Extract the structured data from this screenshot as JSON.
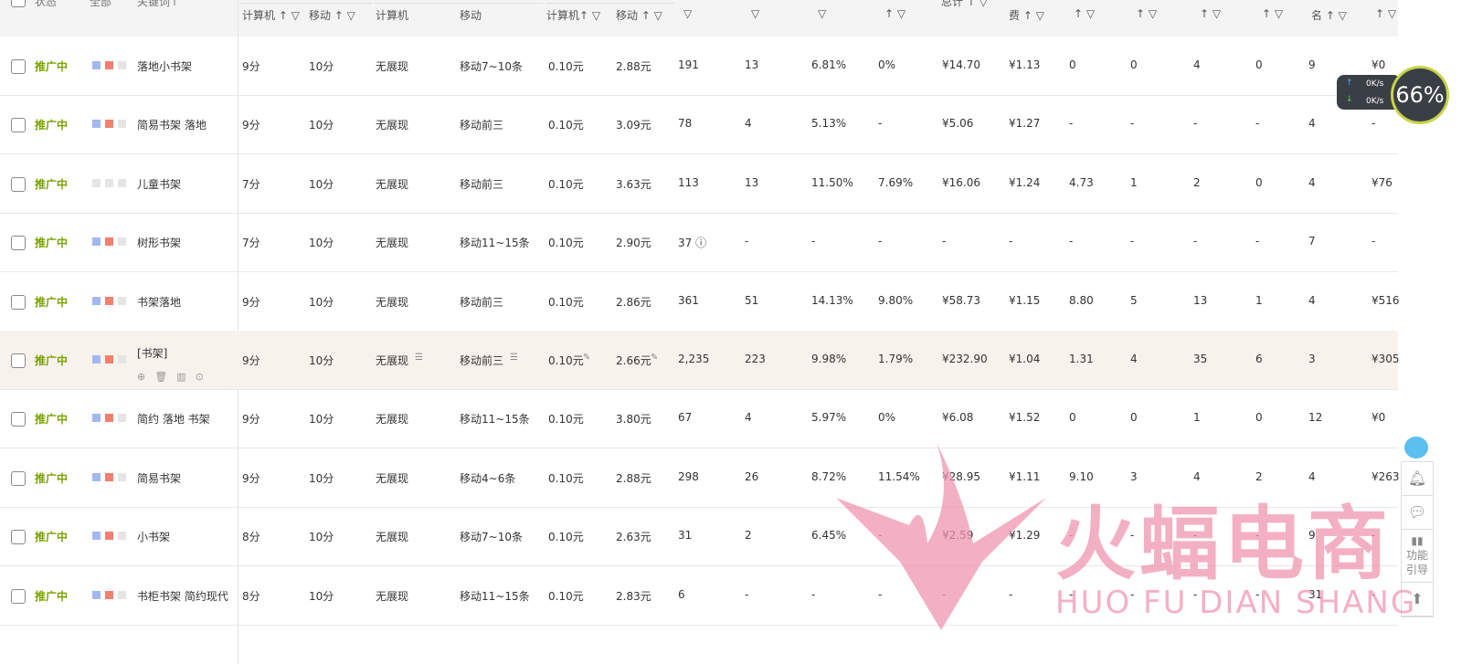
{
  "header": {
    "top": [
      "状态",
      "全部",
      "关键词↑"
    ],
    "cols": [
      "计算机 ↑ ▽",
      "移动 ↑ ▽",
      "计算机",
      "移动",
      "计算机↑ ▽",
      "移动 ↑ ▽",
      "▽",
      "▽",
      "▽",
      "↑ ▽",
      "总计 ↑ ▽",
      "费 ↑ ▽",
      "↑ ▽",
      "↑ ▽",
      "↑ ▽",
      "↑ ▽",
      "名 ↑ ▽",
      "↑ ▽"
    ]
  },
  "colors": {
    "blue": "#a4b8f0",
    "red": "#f08070",
    "gray": "#e5e5e5",
    "status": "#7aa300"
  },
  "rows": [
    {
      "status": "推广中",
      "sq": [
        "blue",
        "red",
        "gray"
      ],
      "kw": "落地小书架",
      "v": [
        "9分",
        "10分",
        "无展现",
        "移动7~10条",
        "0.10元",
        "2.88元",
        "191",
        "13",
        "6.81%",
        "0%",
        "¥14.70",
        "¥1.13",
        "0",
        "0",
        "4",
        "0",
        "9",
        "¥0"
      ]
    },
    {
      "status": "推广中",
      "sq": [
        "blue",
        "red",
        "gray"
      ],
      "kw": "简易书架 落地",
      "v": [
        "9分",
        "10分",
        "无展现",
        "移动前三",
        "0.10元",
        "3.09元",
        "78",
        "4",
        "5.13%",
        "-",
        "¥5.06",
        "¥1.27",
        "-",
        "-",
        "-",
        "-",
        "4",
        "-"
      ]
    },
    {
      "status": "推广中",
      "sq": [
        "gray",
        "gray",
        "gray"
      ],
      "kw": "儿童书架",
      "v": [
        "7分",
        "10分",
        "无展现",
        "移动前三",
        "0.10元",
        "3.63元",
        "113",
        "13",
        "11.50%",
        "7.69%",
        "¥16.06",
        "¥1.24",
        "4.73",
        "1",
        "2",
        "0",
        "4",
        "¥76"
      ]
    },
    {
      "status": "推广中",
      "sq": [
        "blue",
        "red",
        "gray"
      ],
      "kw": "树形书架",
      "v": [
        "7分",
        "10分",
        "无展现",
        "移动11~15条",
        "0.10元",
        "2.90元",
        "37 ⓘ",
        "-",
        "-",
        "-",
        "-",
        "-",
        "-",
        "-",
        "-",
        "-",
        "7",
        "-"
      ]
    },
    {
      "status": "推广中",
      "sq": [
        "blue",
        "red",
        "gray"
      ],
      "kw": "书架落地",
      "v": [
        "9分",
        "10分",
        "无展现",
        "移动前三",
        "0.10元",
        "2.86元",
        "361",
        "51",
        "14.13%",
        "9.80%",
        "¥58.73",
        "¥1.15",
        "8.80",
        "5",
        "13",
        "1",
        "4",
        "¥516"
      ]
    },
    {
      "status": "推广中",
      "sq": [
        "blue",
        "red",
        "gray"
      ],
      "kw": "[书架]",
      "v": [
        "9分",
        "10分",
        "无展现",
        "移动前三",
        "0.10元",
        "2.66元",
        "2,235",
        "223",
        "9.98%",
        "1.79%",
        "¥232.90",
        "¥1.04",
        "1.31",
        "4",
        "35",
        "6",
        "3",
        "¥305"
      ]
    },
    {
      "status": "推广中",
      "sq": [
        "blue",
        "red",
        "gray"
      ],
      "kw": "简约 落地 书架",
      "v": [
        "9分",
        "10分",
        "无展现",
        "移动11~15条",
        "0.10元",
        "3.80元",
        "67",
        "4",
        "5.97%",
        "0%",
        "¥6.08",
        "¥1.52",
        "0",
        "0",
        "1",
        "0",
        "12",
        "¥0"
      ]
    },
    {
      "status": "推广中",
      "sq": [
        "blue",
        "red",
        "gray"
      ],
      "kw": "简易书架",
      "v": [
        "9分",
        "10分",
        "无展现",
        "移动4~6条",
        "0.10元",
        "2.88元",
        "298",
        "26",
        "8.72%",
        "11.54%",
        "¥28.95",
        "¥1.11",
        "9.10",
        "3",
        "4",
        "2",
        "4",
        "¥263"
      ]
    },
    {
      "status": "推广中",
      "sq": [
        "blue",
        "red",
        "gray"
      ],
      "kw": "小书架",
      "v": [
        "8分",
        "10分",
        "无展现",
        "移动7~10条",
        "0.10元",
        "2.63元",
        "31",
        "2",
        "6.45%",
        "-",
        "¥2.59",
        "¥1.29",
        "-",
        "-",
        "-",
        "-",
        "9",
        "-"
      ]
    },
    {
      "status": "推广中",
      "sq": [
        "blue",
        "red",
        "gray"
      ],
      "kw": "书柜书架 简约现代",
      "v": [
        "8分",
        "10分",
        "无展现",
        "移动11~15条",
        "0.10元",
        "2.83元",
        "6",
        "-",
        "-",
        "-",
        "-",
        "-",
        "-",
        "-",
        "-",
        "-",
        "31",
        "-"
      ]
    }
  ],
  "net": {
    "up": "0K/s",
    "down": "0K/s",
    "gauge": "66%"
  },
  "side": {
    "guide": "功能引导"
  },
  "watermark": {
    "cn": "火蝠电商",
    "en": "HUO FU DIAN SHANG"
  }
}
